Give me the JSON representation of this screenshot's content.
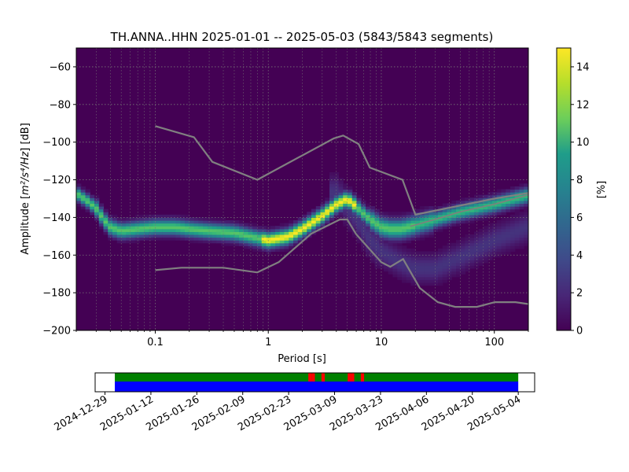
{
  "chart_data": [
    {
      "type": "heatmap",
      "title": "TH.ANNA..HHN   2025-01-01 -- 2025-05-03  (5843/5843 segments)",
      "xlabel": "Period [s]",
      "ylabel_prefix": "Amplitude [",
      "ylabel_math": "m²/s⁴/Hz",
      "ylabel_suffix": "] [dB]",
      "xscale": "log",
      "xlim": [
        0.02,
        200
      ],
      "ylim": [
        -200,
        -50
      ],
      "xticks": [
        {
          "value": 0.1,
          "label": "0.1"
        },
        {
          "value": 1,
          "label": "1"
        },
        {
          "value": 10,
          "label": "10"
        },
        {
          "value": 100,
          "label": "100"
        }
      ],
      "yticks": [
        {
          "value": -60,
          "label": "−60"
        },
        {
          "value": -80,
          "label": "−80"
        },
        {
          "value": -100,
          "label": "−100"
        },
        {
          "value": -120,
          "label": "−120"
        },
        {
          "value": -140,
          "label": "−140"
        },
        {
          "value": -160,
          "label": "−160"
        },
        {
          "value": -180,
          "label": "−180"
        },
        {
          "value": -200,
          "label": "−200"
        }
      ],
      "grid": true,
      "colormap": "viridis",
      "colorbar": {
        "label": "[%]",
        "range": [
          0,
          15
        ],
        "ticks": [
          {
            "value": 0,
            "label": "0"
          },
          {
            "value": 2,
            "label": "2"
          },
          {
            "value": 4,
            "label": "4"
          },
          {
            "value": 6,
            "label": "6"
          },
          {
            "value": 8,
            "label": "8"
          },
          {
            "value": 10,
            "label": "10"
          },
          {
            "value": 12,
            "label": "12"
          },
          {
            "value": 14,
            "label": "14"
          }
        ]
      },
      "mode_curve": {
        "period": [
          0.02,
          0.025,
          0.03,
          0.035,
          0.04,
          0.05,
          0.07,
          0.1,
          0.15,
          0.2,
          0.3,
          0.5,
          0.7,
          1,
          1.5,
          2,
          3,
          4,
          5,
          6,
          7,
          8,
          10,
          12,
          15,
          20,
          30,
          50,
          100,
          200
        ],
        "db": [
          -127,
          -131,
          -135,
          -141,
          -145,
          -147,
          -146,
          -145,
          -145,
          -146,
          -147,
          -148,
          -150,
          -152,
          -150,
          -146,
          -139,
          -133,
          -130,
          -134,
          -138,
          -141,
          -145,
          -146,
          -146,
          -144,
          -141,
          -137,
          -133,
          -128
        ]
      },
      "secondary_branch": {
        "period": [
          4,
          6,
          8,
          10,
          15,
          20,
          30,
          50,
          100,
          200
        ],
        "db": [
          -127,
          -140,
          -152,
          -158,
          -164,
          -167,
          -167,
          -161,
          -152,
          -145
        ]
      },
      "nhnm": {
        "period": [
          0.1,
          0.22,
          0.32,
          0.8,
          3.8,
          4.6,
          6.3,
          7.9,
          15.4,
          20,
          100,
          200
        ],
        "db": [
          -91.5,
          -97.4,
          -110.5,
          -120,
          -98,
          -96.5,
          -101,
          -113.5,
          -120,
          -138.5,
          -130,
          -127
        ]
      },
      "nlnm": {
        "period": [
          0.1,
          0.17,
          0.4,
          0.8,
          1.24,
          2.4,
          4.3,
          5,
          6,
          10,
          12,
          15.6,
          21.9,
          31.6,
          45,
          70,
          101,
          154,
          200
        ],
        "db": [
          -168,
          -166.7,
          -166.7,
          -169.2,
          -163.7,
          -148.6,
          -141.1,
          -141.1,
          -149,
          -163.8,
          -166.2,
          -162.1,
          -177.5,
          -185,
          -187.5,
          -187.5,
          -185,
          -185,
          -186
        ]
      },
      "colors": {
        "noise_model": "#808080",
        "mode_line": "#7f7f7f",
        "grid": "#777777",
        "background": "#440154"
      }
    },
    {
      "type": "timeline",
      "xaxis_ticks": [
        "2024-12-29",
        "2025-01-12",
        "2025-01-26",
        "2025-02-09",
        "2025-02-23",
        "2025-03-09",
        "2025-03-23",
        "2025-04-06",
        "2025-04-20",
        "2025-05-04"
      ],
      "range": [
        "2024-12-26",
        "2025-05-09"
      ],
      "data_span": [
        "2025-01-01",
        "2025-05-03"
      ],
      "gap_days": [
        "2025-03-01",
        "2025-03-02",
        "2025-03-05",
        "2025-03-13",
        "2025-03-14",
        "2025-03-17"
      ],
      "colors": {
        "used": "#008000",
        "available": "#0000ff",
        "gap": "#ff0000"
      }
    }
  ]
}
